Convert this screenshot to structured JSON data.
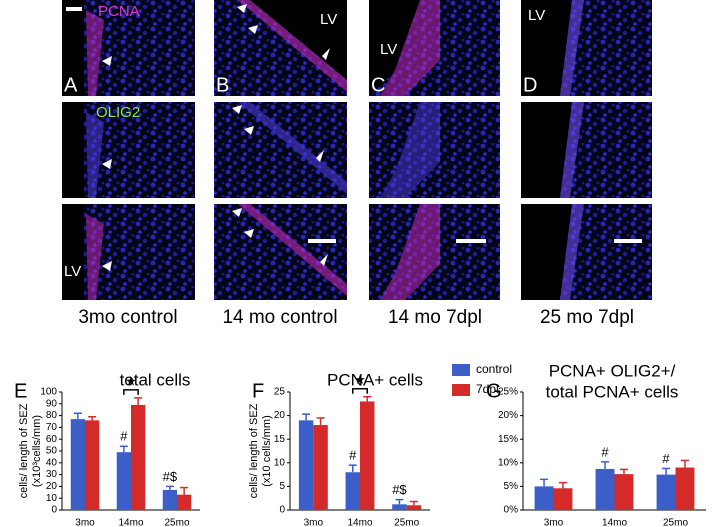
{
  "figure": {
    "panels": [
      {
        "letter": "A",
        "caption": "3mo control"
      },
      {
        "letter": "B",
        "caption": "14 mo control"
      },
      {
        "letter": "C",
        "caption": "14 mo 7dpl"
      },
      {
        "letter": "D",
        "caption": "25 mo 7dpl"
      }
    ],
    "stain_labels": [
      "PCNA",
      "OLIG2"
    ],
    "lv_label": "LV"
  },
  "chart_data": [
    {
      "type": "bar",
      "letter": "E",
      "title": "total cells",
      "ylabel": [
        "cells/ length of SEZ",
        "(x10³cells/mm)"
      ],
      "categories": [
        "3mo",
        "14mo",
        "25mo"
      ],
      "series": [
        {
          "color": "#3c5ec8",
          "values": [
            77,
            49,
            17
          ],
          "errors": [
            5,
            5,
            3
          ],
          "annotations": [
            null,
            "#",
            "#$"
          ]
        },
        {
          "color": "#d42a2a",
          "values": [
            76,
            89,
            13
          ],
          "errors": [
            3,
            6,
            6
          ],
          "annotations": [
            null,
            null,
            null
          ]
        }
      ],
      "significance": {
        "text": "★",
        "category": "14mo"
      },
      "ylim": [
        0,
        100
      ],
      "yticks": [
        0,
        10,
        20,
        30,
        40,
        50,
        60,
        70,
        80,
        90,
        100
      ]
    },
    {
      "type": "bar",
      "letter": "F",
      "title": "PCNA+ cells",
      "ylabel": [
        "cells/ length of SEZ",
        "(x10 cells/mm)"
      ],
      "categories": [
        "3mo",
        "14mo",
        "25mo"
      ],
      "series": [
        {
          "name": "control",
          "color": "#3c5ec8",
          "values": [
            19,
            8,
            1.2
          ],
          "errors": [
            1.3,
            1.5,
            1
          ],
          "annotations": [
            null,
            "#",
            "#$"
          ]
        },
        {
          "name": "7dpl",
          "color": "#d42a2a",
          "values": [
            18,
            23,
            1
          ],
          "errors": [
            1.5,
            1,
            0.8
          ],
          "annotations": [
            null,
            null,
            null
          ]
        }
      ],
      "significance": {
        "text": "★",
        "category": "14mo"
      },
      "legend": "right",
      "ylim": [
        0,
        25
      ],
      "yticks": [
        0,
        5,
        10,
        15,
        20,
        25
      ]
    },
    {
      "type": "bar",
      "letter": "G",
      "title": [
        "PCNA+ OLIG2+/",
        "total PCNA+ cells"
      ],
      "categories": [
        "3mo",
        "14mo",
        "25mo"
      ],
      "series": [
        {
          "color": "#3c5ec8",
          "values": [
            5,
            8.7,
            7.5
          ],
          "errors": [
            1.5,
            1.5,
            1.3
          ],
          "annotations": [
            null,
            "#",
            "#"
          ]
        },
        {
          "color": "#d42a2a",
          "values": [
            4.6,
            7.6,
            9
          ],
          "errors": [
            1.2,
            1,
            1.5
          ],
          "annotations": [
            null,
            null,
            null
          ]
        }
      ],
      "ylim": [
        0,
        25
      ],
      "yticks": [
        {
          "value": 0,
          "label": "0%"
        },
        {
          "value": 5,
          "label": "5%"
        },
        {
          "value": 10,
          "label": "10%"
        },
        {
          "value": 15,
          "label": "15%"
        },
        {
          "value": 20,
          "label": "20%"
        },
        {
          "value": 25,
          "label": "25%"
        }
      ]
    }
  ]
}
